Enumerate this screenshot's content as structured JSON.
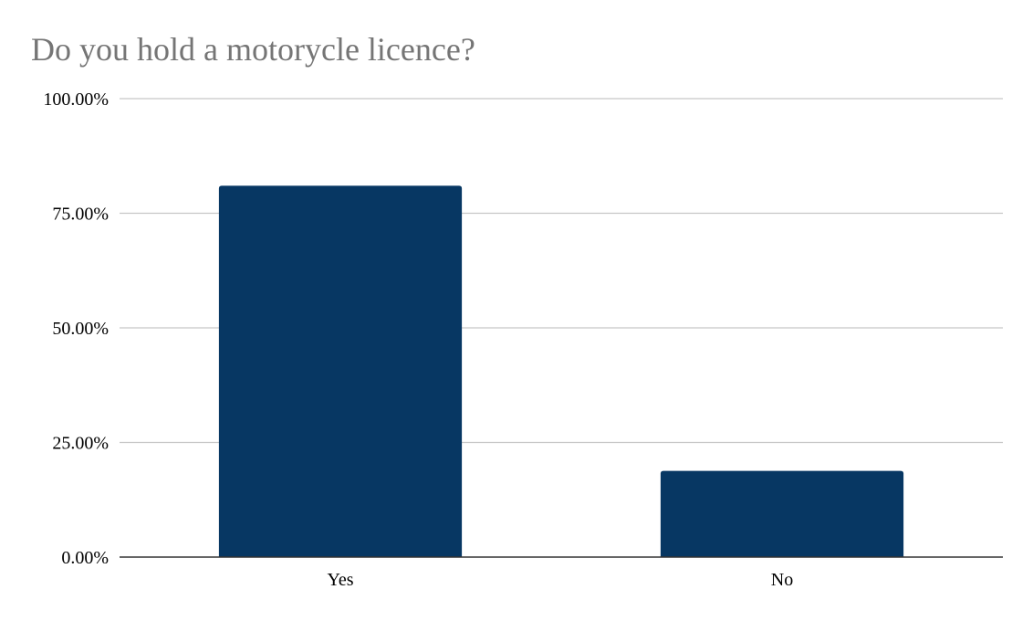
{
  "chart_data": {
    "type": "bar",
    "title": "Do you hold a motorycle licence?",
    "xlabel": "",
    "ylabel": "",
    "categories": [
      "Yes",
      "No"
    ],
    "values": [
      81.0,
      18.8
    ],
    "ylim": [
      0,
      100
    ],
    "yticks": [
      "0.00%",
      "25.00%",
      "50.00%",
      "75.00%",
      "100.00%"
    ],
    "ytick_values": [
      0,
      25,
      50,
      75,
      100
    ],
    "grid": true,
    "legend": "none",
    "bar_color": "#073763"
  }
}
